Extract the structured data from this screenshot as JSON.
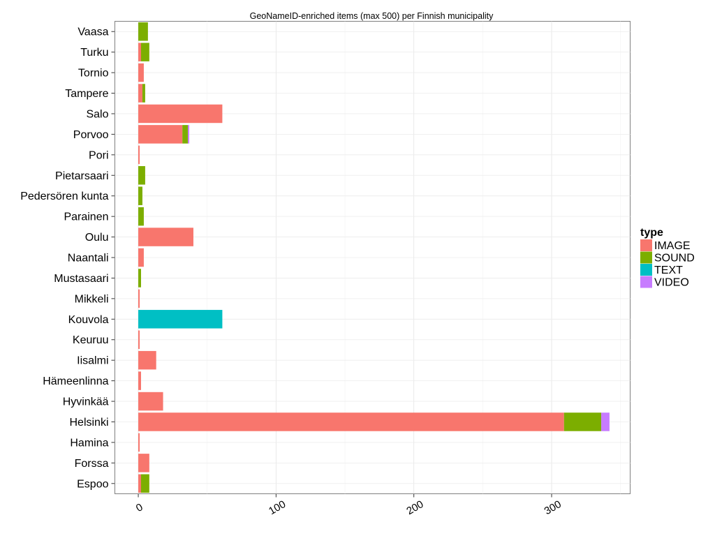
{
  "chart_data": {
    "type": "bar",
    "orientation": "horizontal",
    "stacked": true,
    "title": "GeoNameID-enriched items (max 500) per Finnish municipality",
    "xlabel": "",
    "ylabel": "",
    "xlim": [
      -17,
      357
    ],
    "x_ticks": [
      "0",
      "100",
      "200",
      "300"
    ],
    "x_tick_values": [
      0,
      100,
      200,
      300
    ],
    "grid": true,
    "legend": {
      "title": "type",
      "position": "right",
      "entries": [
        "IMAGE",
        "SOUND",
        "TEXT",
        "VIDEO"
      ]
    },
    "colors": {
      "IMAGE": "#F8766D",
      "SOUND": "#7CAE00",
      "TEXT": "#00BFC4",
      "VIDEO": "#C77CFF"
    },
    "categories": [
      "Vaasa",
      "Turku",
      "Tornio",
      "Tampere",
      "Salo",
      "Porvoo",
      "Pori",
      "Pietarsaari",
      "Pedersören kunta",
      "Parainen",
      "Oulu",
      "Naantali",
      "Mustasaari",
      "Mikkeli",
      "Kouvola",
      "Keuruu",
      "Iisalmi",
      "Hämeenlinna",
      "Hyvinkää",
      "Helsinki",
      "Hamina",
      "Forssa",
      "Espoo"
    ],
    "series": [
      {
        "name": "IMAGE",
        "values": [
          0,
          2,
          4,
          3,
          61,
          32,
          1,
          0,
          0,
          0,
          40,
          4,
          0,
          1,
          0,
          1,
          13,
          2,
          18,
          309,
          1,
          8,
          2
        ]
      },
      {
        "name": "SOUND",
        "values": [
          7,
          6,
          0,
          2,
          0,
          4,
          0,
          5,
          3,
          4,
          0,
          0,
          2,
          0,
          0,
          0,
          0,
          0,
          0,
          27,
          0,
          0,
          6
        ]
      },
      {
        "name": "TEXT",
        "values": [
          0,
          0,
          0,
          0,
          0,
          0,
          0,
          0,
          0,
          0,
          0,
          0,
          0,
          0,
          61,
          0,
          0,
          0,
          0,
          0,
          0,
          0,
          0
        ]
      },
      {
        "name": "VIDEO",
        "values": [
          0,
          0,
          0,
          0,
          0,
          1,
          0,
          0,
          0,
          0,
          0,
          0,
          0,
          0,
          0,
          0,
          0,
          0,
          0,
          6,
          0,
          0,
          0
        ]
      }
    ]
  }
}
